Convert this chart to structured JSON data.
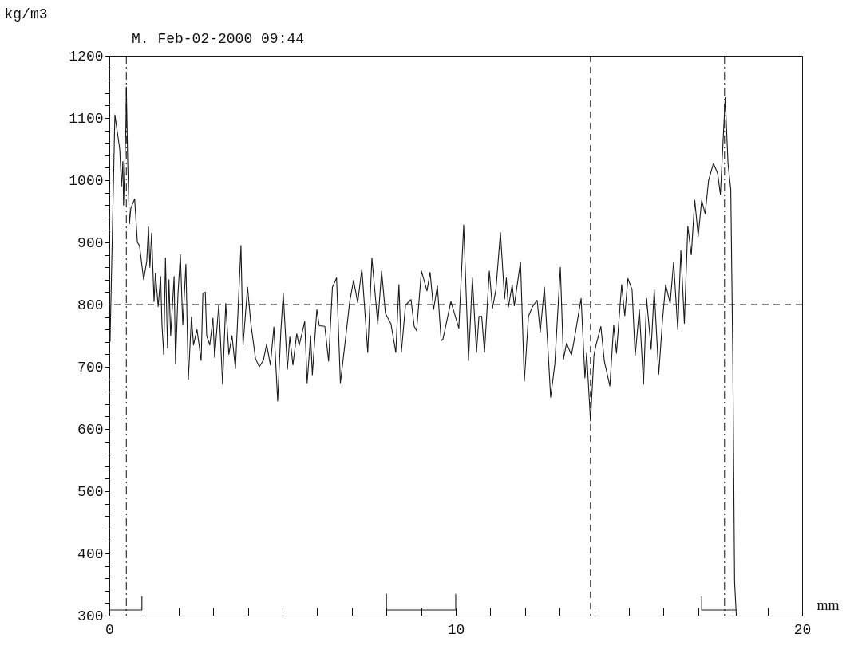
{
  "chart_data": {
    "type": "line",
    "subtitle": "M.    Feb-02-2000    09:44",
    "xlabel": "mm",
    "ylabel": "kg/m3",
    "x": [
      0.02,
      0.16,
      0.3,
      0.35,
      0.39,
      0.41,
      0.48,
      0.49,
      0.53,
      0.58,
      0.62,
      0.73,
      0.81,
      0.87,
      0.99,
      1.08,
      1.13,
      1.17,
      1.22,
      1.29,
      1.33,
      1.41,
      1.48,
      1.52,
      1.57,
      1.62,
      1.68,
      1.72,
      1.77,
      1.87,
      1.91,
      1.98,
      2.05,
      2.12,
      2.21,
      2.28,
      2.37,
      2.43,
      2.53,
      2.65,
      2.7,
      2.77,
      2.81,
      2.9,
      2.99,
      3.04,
      3.16,
      3.27,
      3.36,
      3.45,
      3.54,
      3.64,
      3.8,
      3.86,
      3.99,
      4.08,
      4.22,
      4.33,
      4.45,
      4.54,
      4.65,
      4.75,
      4.86,
      4.95,
      5.02,
      5.14,
      5.21,
      5.3,
      5.41,
      5.48,
      5.64,
      5.71,
      5.81,
      5.86,
      5.99,
      6.06,
      6.22,
      6.33,
      6.44,
      6.56,
      6.67,
      6.8,
      6.94,
      7.05,
      7.17,
      7.29,
      7.46,
      7.58,
      7.75,
      7.86,
      7.97,
      8.13,
      8.27,
      8.36,
      8.43,
      8.55,
      8.71,
      8.8,
      8.87,
      9.01,
      9.17,
      9.26,
      9.36,
      9.47,
      9.58,
      9.63,
      9.86,
      10.09,
      10.23,
      10.37,
      10.48,
      10.6,
      10.67,
      10.75,
      10.83,
      10.97,
      11.06,
      11.16,
      11.29,
      11.41,
      11.46,
      11.52,
      11.63,
      11.69,
      11.87,
      11.98,
      12.1,
      12.21,
      12.35,
      12.44,
      12.56,
      12.67,
      12.74,
      12.86,
      13.02,
      13.11,
      13.2,
      13.34,
      13.41,
      13.62,
      13.73,
      13.78,
      13.89,
      13.99,
      14.05,
      14.19,
      14.29,
      14.45,
      14.56,
      14.64,
      14.79,
      14.88,
      14.97,
      15.09,
      15.18,
      15.3,
      15.42,
      15.51,
      15.64,
      15.73,
      15.86,
      15.97,
      16.06,
      16.19,
      16.29,
      16.41,
      16.5,
      16.6,
      16.7,
      16.8,
      16.9,
      17,
      17.1,
      17.2,
      17.3,
      17.44,
      17.56,
      17.64,
      17.71,
      17.78,
      17.86,
      17.94,
      18,
      18.05,
      18.1
    ],
    "series": [
      {
        "color": "#1a1a1a",
        "values": [
          740,
          1105,
          1050,
          990,
          1030,
          960,
          1090,
          1150,
          1030,
          930,
          955,
          970,
          900,
          895,
          840,
          870,
          925,
          860,
          915,
          805,
          850,
          797,
          845,
          767,
          720,
          875,
          730,
          840,
          750,
          845,
          705,
          815,
          880,
          767,
          865,
          680,
          780,
          735,
          760,
          710,
          818,
          820,
          750,
          735,
          778,
          715,
          800,
          672,
          802,
          720,
          750,
          697,
          895,
          735,
          828,
          772,
          713,
          700,
          711,
          736,
          703,
          764,
          645,
          756,
          818,
          696,
          748,
          703,
          753,
          734,
          773,
          674,
          750,
          687,
          792,
          766,
          765,
          709,
          828,
          843,
          674,
          736,
          805,
          839,
          803,
          858,
          723,
          875,
          769,
          854,
          786,
          769,
          723,
          832,
          723,
          799,
          808,
          765,
          758,
          854,
          822,
          852,
          792,
          830,
          742,
          744,
          805,
          762,
          928,
          710,
          843,
          723,
          781,
          781,
          723,
          854,
          794,
          824,
          916,
          809,
          843,
          796,
          832,
          798,
          869,
          677,
          781,
          796,
          807,
          756,
          828,
          721,
          651,
          704,
          860,
          712,
          738,
          719,
          740,
          810,
          682,
          722,
          613,
          718,
          735,
          765,
          709,
          669,
          767,
          722,
          832,
          782,
          842,
          824,
          718,
          792,
          672,
          810,
          728,
          824,
          688,
          776,
          832,
          802,
          869,
          760,
          887,
          770,
          926,
          880,
          968,
          910,
          968,
          946,
          1000,
          1027,
          1011,
          977,
          1054,
          1133,
          1027,
          985,
          706,
          354,
          300
        ]
      },
      {
        "color": "#1a1a1a",
        "x": [
          0,
          0.94,
          0.94
        ],
        "values": [
          309,
          309,
          331
        ]
      },
      {
        "color": "#1a1a1a",
        "x": [
          8,
          8,
          10,
          10
        ],
        "values": [
          335,
          309,
          309,
          335
        ]
      },
      {
        "color": "#1a1a1a",
        "x": [
          17.1,
          17.1,
          18.1
        ],
        "values": [
          331,
          309,
          309
        ]
      }
    ],
    "xlim": [
      0,
      20
    ],
    "ylim": [
      300,
      1200
    ],
    "xticks": [
      0,
      {
        "value": 1,
        "label": null
      },
      {
        "value": 2,
        "label": null
      },
      {
        "value": 3,
        "label": null
      },
      {
        "value": 4,
        "label": null
      },
      {
        "value": 5,
        "label": null
      },
      {
        "value": 6,
        "label": null
      },
      {
        "value": 7,
        "label": null
      },
      {
        "value": 8,
        "label": null
      },
      {
        "value": 9,
        "label": null
      },
      10,
      {
        "value": 11,
        "label": null
      },
      {
        "value": 12,
        "label": null
      },
      {
        "value": 13,
        "label": null
      },
      {
        "value": 14,
        "label": null
      },
      {
        "value": 15,
        "label": null
      },
      {
        "value": 16,
        "label": null
      },
      {
        "value": 17,
        "label": null
      },
      {
        "value": 18,
        "label": null
      },
      {
        "value": 19,
        "label": null
      },
      20
    ],
    "yticks": [
      300,
      {
        "value": 320,
        "label": null
      },
      {
        "value": 340,
        "label": null
      },
      {
        "value": 360,
        "label": null
      },
      {
        "value": 380,
        "label": null
      },
      400,
      {
        "value": 420,
        "label": null
      },
      {
        "value": 440,
        "label": null
      },
      {
        "value": 460,
        "label": null
      },
      {
        "value": 480,
        "label": null
      },
      500,
      {
        "value": 520,
        "label": null
      },
      {
        "value": 540,
        "label": null
      },
      {
        "value": 560,
        "label": null
      },
      {
        "value": 580,
        "label": null
      },
      600,
      {
        "value": 620,
        "label": null
      },
      {
        "value": 640,
        "label": null
      },
      {
        "value": 660,
        "label": null
      },
      {
        "value": 680,
        "label": null
      },
      700,
      {
        "value": 720,
        "label": null
      },
      {
        "value": 740,
        "label": null
      },
      {
        "value": 760,
        "label": null
      },
      {
        "value": 780,
        "label": null
      },
      800,
      {
        "value": 820,
        "label": null
      },
      {
        "value": 840,
        "label": null
      },
      {
        "value": 860,
        "label": null
      },
      {
        "value": 880,
        "label": null
      },
      900,
      {
        "value": 920,
        "label": null
      },
      {
        "value": 940,
        "label": null
      },
      {
        "value": 960,
        "label": null
      },
      {
        "value": 980,
        "label": null
      },
      1000,
      {
        "value": 1020,
        "label": null
      },
      {
        "value": 1040,
        "label": null
      },
      {
        "value": 1060,
        "label": null
      },
      {
        "value": 1080,
        "label": null
      },
      1100,
      {
        "value": 1120,
        "label": null
      },
      {
        "value": 1140,
        "label": null
      },
      {
        "value": 1160,
        "label": null
      },
      {
        "value": 1180,
        "label": null
      },
      1200
    ],
    "ref_lines": [
      {
        "axis": "y",
        "value": 800,
        "line_style": "dashed"
      },
      {
        "axis": "x",
        "value": 0.49,
        "line_style": "dotted"
      },
      {
        "axis": "x",
        "value": 13.89,
        "line_style": "dashed"
      },
      {
        "axis": "x",
        "value": 17.76,
        "line_style": "dotted"
      }
    ]
  }
}
